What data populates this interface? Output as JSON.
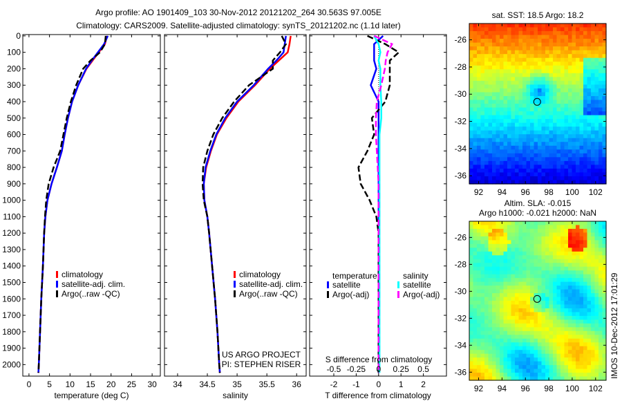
{
  "title_line1": "Argo profile: AO 1901409_103 30-Nov-2012 20121202_264 30.563S 97.005E",
  "title_line2": "Climatology: CARS2009. Satellite-adjusted climatology: synTS_20121202.nc (1.1d later)",
  "side_stamp": "IMOS 10-Dec-2012 17:01:29",
  "project_line1": "US ARGO PROJECT",
  "project_line2": "PI: STEPHEN RISER",
  "colors": {
    "climatology": "#ff0000",
    "satellite": "#0000ff",
    "argo": "#000000",
    "sal_satellite": "#00ffff",
    "sal_argo": "#ff00ff"
  },
  "chart_data": [
    {
      "type": "line",
      "name": "temperature-profile",
      "xlabel": "temperature (deg C)",
      "xlim": [
        -1.5,
        32
      ],
      "ylim": [
        2070,
        -8
      ],
      "xticks": [
        0,
        5,
        10,
        15,
        20,
        25,
        30
      ],
      "yticks": [
        0,
        100,
        200,
        300,
        400,
        500,
        600,
        700,
        800,
        900,
        1000,
        1100,
        1200,
        1300,
        1400,
        1500,
        1600,
        1700,
        1800,
        1900,
        2000
      ],
      "depth": [
        0,
        50,
        100,
        150,
        200,
        300,
        400,
        500,
        600,
        700,
        800,
        900,
        1000,
        1100,
        1200,
        1400,
        1600,
        1800,
        2000,
        2050
      ],
      "legend": [
        "climatology",
        "satellite-adj. clim.",
        "Argo(..raw -QC)"
      ],
      "series": [
        {
          "name": "climatology",
          "values": [
            19,
            18.5,
            17,
            15.5,
            14,
            12,
            10.5,
            9.5,
            8.7,
            8,
            6.8,
            5.5,
            4.5,
            4,
            3.7,
            3.4,
            3,
            2.7,
            2.4,
            2.3
          ]
        },
        {
          "name": "satellite-adj. clim.",
          "values": [
            19.2,
            18.3,
            16.8,
            15.3,
            13.9,
            12,
            10.5,
            9.5,
            8.7,
            8,
            6.8,
            5.5,
            4.5,
            4,
            3.7,
            3.4,
            3,
            2.7,
            2.4,
            2.3
          ]
        },
        {
          "name": "Argo(..raw -QC)",
          "values": [
            18.7,
            18.5,
            17.3,
            15,
            13.2,
            11.5,
            10.2,
            9.2,
            8.4,
            7.6,
            6,
            4.8,
            4.2,
            3.9,
            3.7,
            3.4,
            3,
            2.7,
            2.4,
            2.3
          ]
        }
      ]
    },
    {
      "type": "line",
      "name": "salinity-profile",
      "xlabel": "salinity",
      "xlim": [
        33.78,
        36.16
      ],
      "ylim": [
        2070,
        -8
      ],
      "xticks": [
        34,
        34.5,
        35,
        35.5,
        36
      ],
      "depth": [
        0,
        50,
        100,
        150,
        200,
        300,
        400,
        500,
        600,
        700,
        800,
        900,
        1000,
        1100,
        1200,
        1400,
        1600,
        1800,
        2000,
        2050
      ],
      "legend": [
        "climatology",
        "satellite-adj. clim.",
        "Argo(..raw -QC)"
      ],
      "series": [
        {
          "name": "climatology",
          "values": [
            35.9,
            35.88,
            35.85,
            35.7,
            35.55,
            35.3,
            35.02,
            34.82,
            34.66,
            34.56,
            34.48,
            34.44,
            34.45,
            34.5,
            34.53,
            34.58,
            34.63,
            34.67,
            34.7,
            34.71
          ]
        },
        {
          "name": "satellite-adj. clim.",
          "values": [
            35.82,
            35.8,
            35.78,
            35.66,
            35.52,
            35.28,
            35.0,
            34.8,
            34.65,
            34.55,
            34.47,
            34.44,
            34.45,
            34.5,
            34.53,
            34.58,
            34.63,
            34.67,
            34.7,
            34.71
          ]
        },
        {
          "name": "Argo(..raw -QC)",
          "values": [
            35.75,
            35.82,
            35.72,
            35.6,
            35.6,
            35.2,
            34.95,
            34.75,
            34.6,
            34.5,
            34.43,
            34.42,
            34.44,
            34.5,
            34.53,
            34.58,
            34.63,
            34.67,
            34.7,
            34.71
          ]
        }
      ]
    },
    {
      "type": "line",
      "name": "difference-profile",
      "xlabel": "T difference from climatology",
      "xlabel_top": "S difference from climatology",
      "xlim": [
        -3.08,
        3.03
      ],
      "ylim": [
        2070,
        -8
      ],
      "xticks": [
        -2,
        -1,
        0,
        1,
        2
      ],
      "s_xticks": [
        "-0.5",
        "-0.25",
        "0",
        "0.25",
        "0.5"
      ],
      "s_xtick_values": [
        -0.5,
        -0.25,
        0,
        0.25,
        0.5
      ],
      "s_per_t": 0.25,
      "depth": [
        0,
        50,
        100,
        150,
        200,
        300,
        400,
        500,
        600,
        700,
        800,
        900,
        1000,
        1100,
        1200,
        1400,
        1600,
        1800,
        2000,
        2050
      ],
      "legend_headers": [
        "temperature",
        "salinity"
      ],
      "legend": [
        "satellite",
        "Argo(-adj)",
        "satellite",
        "Argo(-adj)"
      ],
      "series": [
        {
          "name": "T satellite",
          "unit": "T",
          "values": [
            0.2,
            -0.2,
            -0.2,
            -0.2,
            -0.1,
            -0.35,
            0,
            0,
            0,
            0,
            0,
            0,
            0,
            0,
            0,
            0,
            0,
            0,
            0,
            0
          ]
        },
        {
          "name": "T Argo(-adj)",
          "unit": "T",
          "values": [
            -0.5,
            0.3,
            0.9,
            0.5,
            0.5,
            0.5,
            0.3,
            -0.3,
            -0.2,
            -0.5,
            -0.9,
            -0.8,
            -0.4,
            -0.1,
            0,
            0,
            0,
            0,
            0,
            0
          ]
        },
        {
          "name": "S satellite",
          "unit": "S",
          "values": [
            -0.05,
            0,
            0.02,
            0,
            0.02,
            0.02,
            0.03,
            0.03,
            0.01,
            0.01,
            0.01,
            0.01,
            0.01,
            0.01,
            0.01,
            0.01,
            0.01,
            0.01,
            0.01,
            0.01
          ]
        },
        {
          "name": "S Argo(-adj)",
          "unit": "S",
          "values": [
            -0.05,
            0.15,
            0.1,
            0.08,
            0.07,
            0.03,
            -0.02,
            -0.03,
            -0.03,
            -0.02,
            -0.01,
            0,
            0,
            0,
            0,
            0,
            0,
            0,
            0,
            0
          ]
        }
      ]
    },
    {
      "type": "heatmap",
      "name": "sst-map",
      "title": "sat. SST: 18.5 Argo: 18.2",
      "xlim": [
        91.2,
        102.9
      ],
      "ylim": [
        -36.6,
        -24.8
      ],
      "xticks": [
        92,
        94,
        96,
        98,
        100,
        102
      ],
      "yticks": [
        -26,
        -28,
        -30,
        -32,
        -34,
        -36
      ],
      "marker": {
        "lon": 97.005,
        "lat": -30.563
      }
    },
    {
      "type": "heatmap",
      "name": "sla-map",
      "title_line1": "Altim. SLA: -0.015",
      "title_line2": "Argo h1000: -0.021 h2000: NaN",
      "xlim": [
        91.2,
        102.9
      ],
      "ylim": [
        -36.6,
        -24.8
      ],
      "xticks": [
        92,
        94,
        96,
        98,
        100,
        102
      ],
      "yticks": [
        -26,
        -28,
        -30,
        -32,
        -34,
        -36
      ],
      "marker": {
        "lon": 97.005,
        "lat": -30.563
      }
    }
  ]
}
